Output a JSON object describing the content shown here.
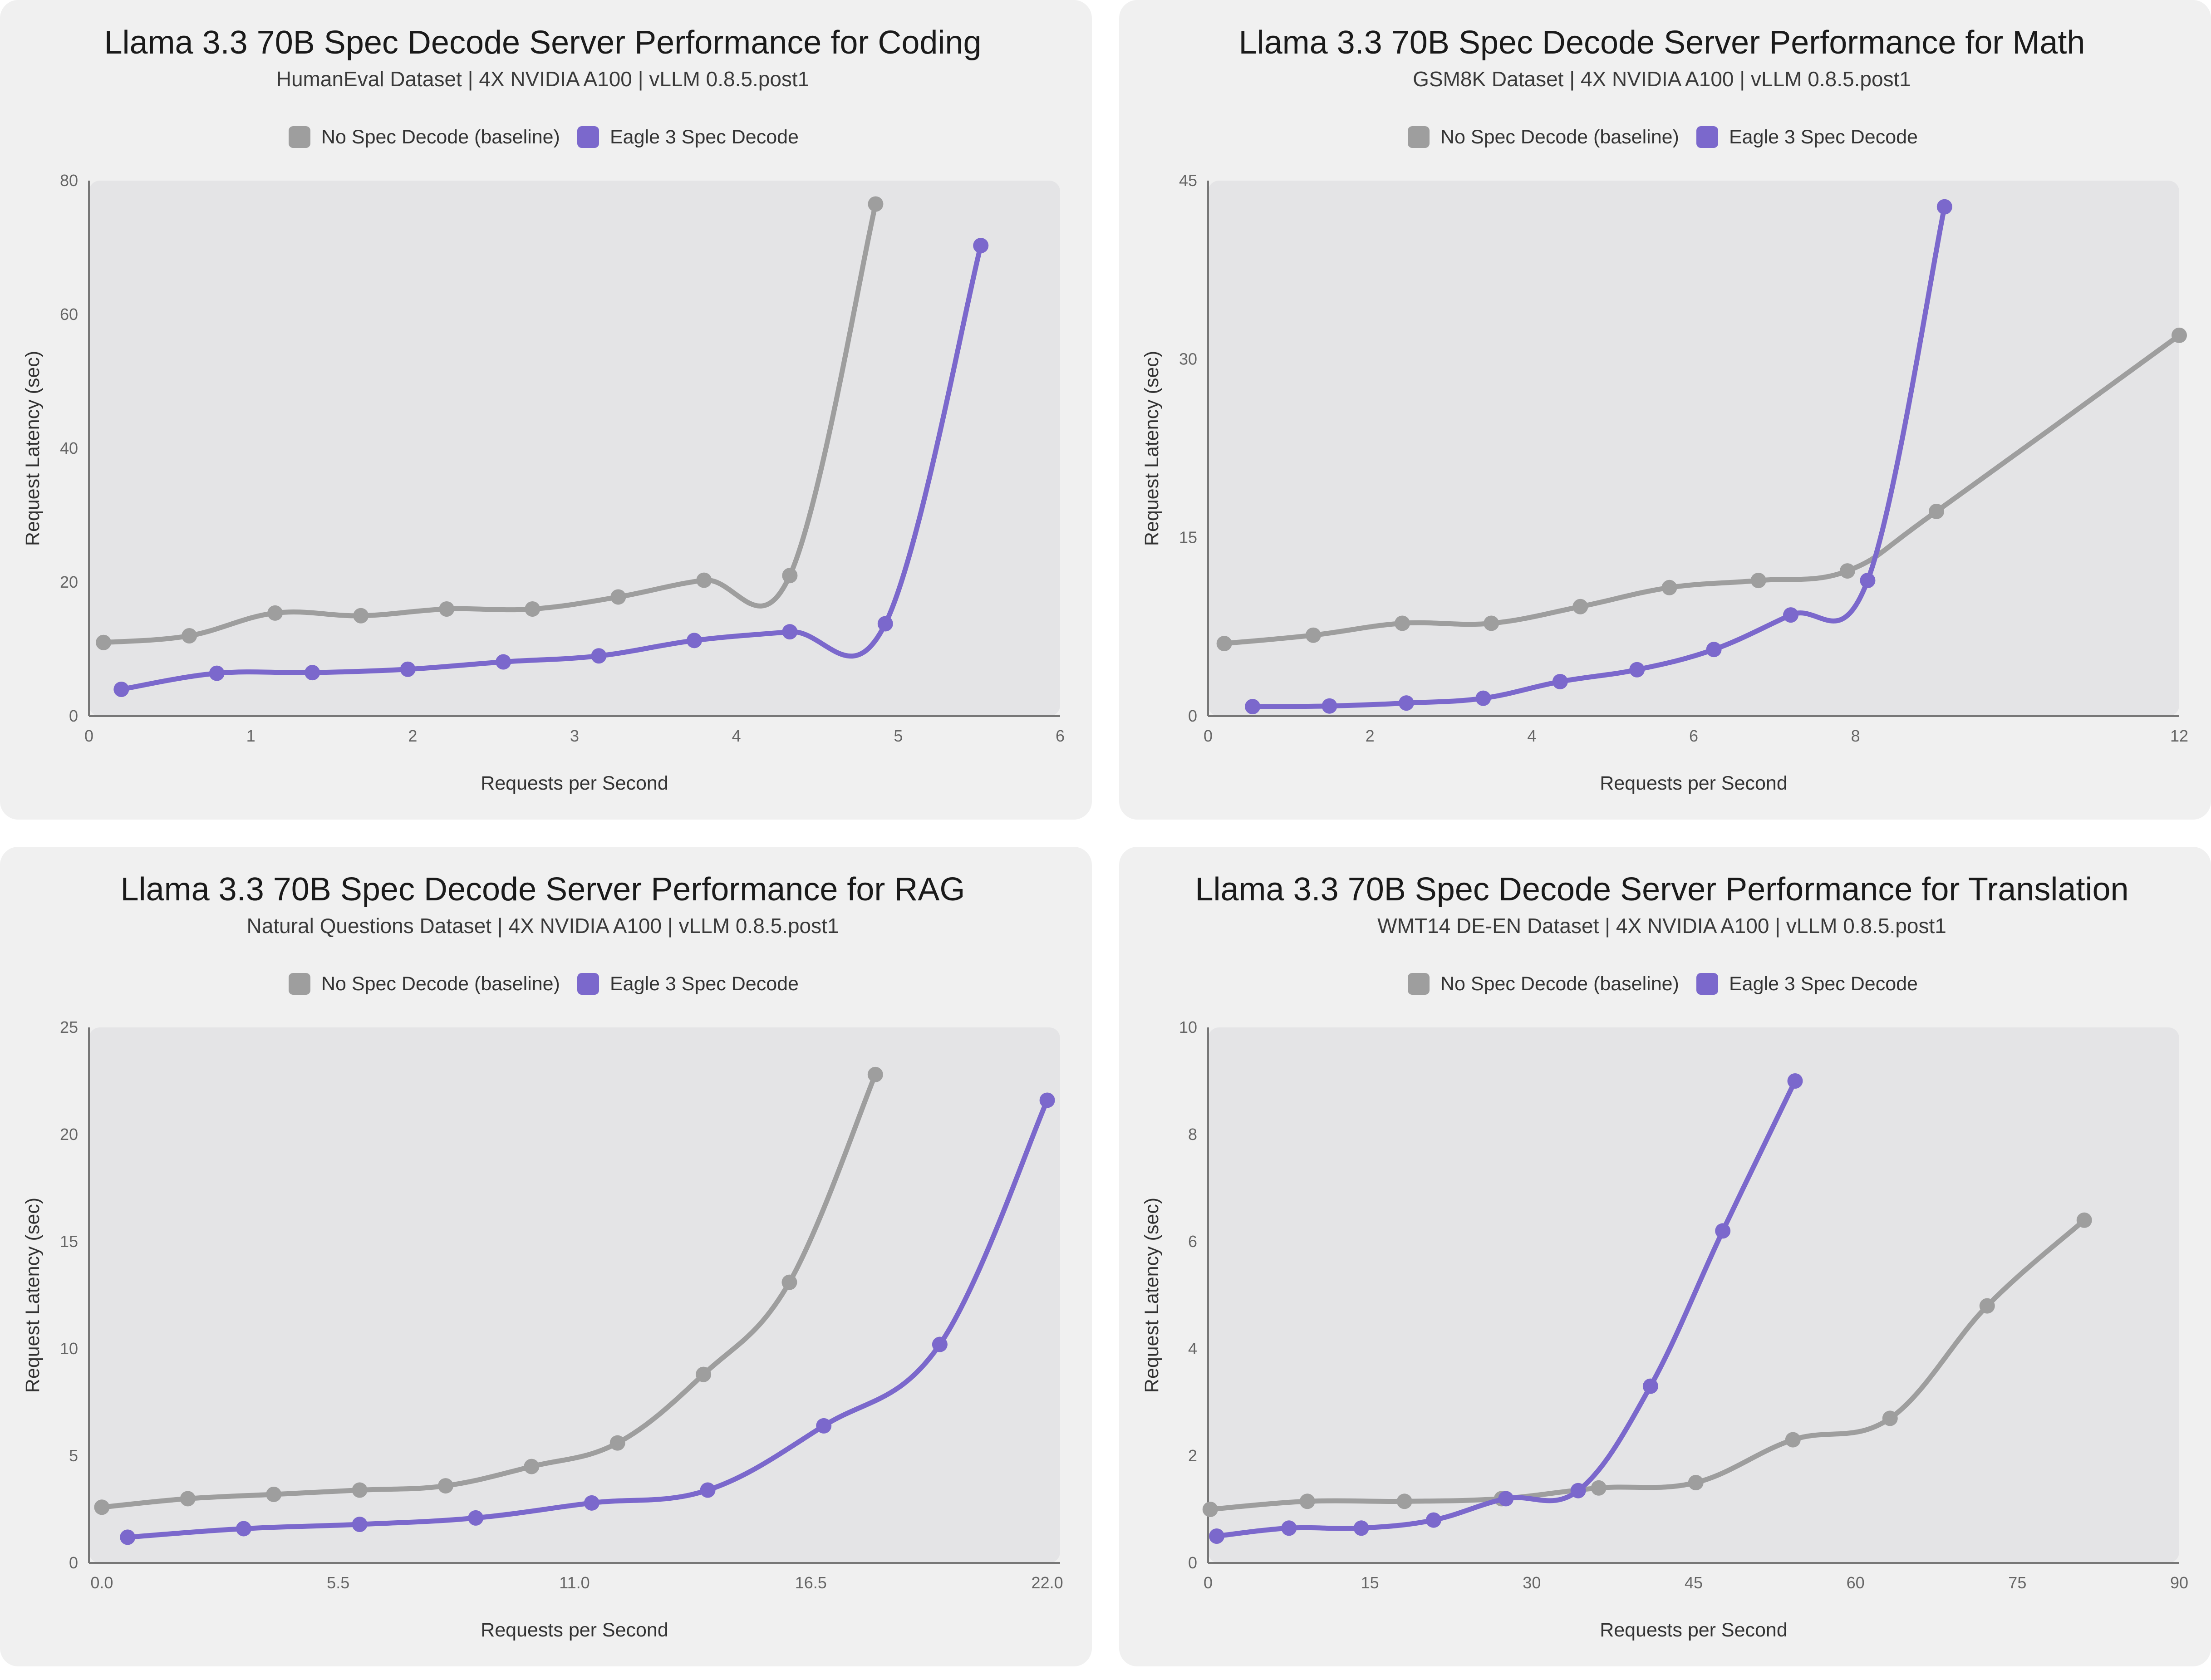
{
  "colors": {
    "baseline": "#9e9e9e",
    "eagle": "#7b68cc",
    "plot_bg": "#e4e4e6",
    "panel_bg": "#f0f0f0",
    "axis": "#777777"
  },
  "chart_data": [
    {
      "type": "line",
      "title": "Llama 3.3 70B Spec Decode Server Performance for Coding",
      "subtitle": "HumanEval Dataset | 4X NVIDIA A100 | vLLM 0.8.5.post1",
      "xlabel": "Requests per Second",
      "ylabel": "Request Latency (sec)",
      "xlim": [
        0,
        6
      ],
      "ylim": [
        0,
        80
      ],
      "xticks": [
        "0",
        "1",
        "2",
        "3",
        "4",
        "5",
        "6"
      ],
      "xtick_values": [
        0,
        1,
        2,
        3,
        4,
        5,
        6
      ],
      "yticks": [
        "0",
        "20",
        "40",
        "60",
        "80"
      ],
      "ytick_values": [
        0,
        20,
        40,
        60,
        80
      ],
      "legend_position": "top-center",
      "grid": false,
      "series": [
        {
          "name": "No Spec Decode (baseline)",
          "x": [
            0.09,
            0.62,
            1.15,
            1.68,
            2.21,
            2.74,
            3.27,
            3.8,
            4.33,
            4.86
          ],
          "y": [
            11,
            12,
            15.4,
            15,
            16,
            16,
            17.8,
            20.3,
            21,
            76.5
          ]
        },
        {
          "name": "Eagle 3 Spec Decode",
          "x": [
            0.2,
            0.79,
            1.38,
            1.97,
            2.56,
            3.15,
            3.74,
            4.33,
            4.92,
            5.51
          ],
          "y": [
            4,
            6.4,
            6.5,
            7,
            8.1,
            9,
            11.3,
            12.6,
            13.8,
            70.3
          ]
        }
      ]
    },
    {
      "type": "line",
      "title": "Llama 3.3 70B Spec Decode Server Performance for Math",
      "subtitle": "GSM8K Dataset | 4X NVIDIA A100 | vLLM 0.8.5.post1",
      "xlabel": "Requests per Second",
      "ylabel": "Request Latency (sec)",
      "xlim": [
        0,
        12
      ],
      "ylim": [
        0,
        45
      ],
      "xticks": [
        "0",
        "2",
        "4",
        "6",
        "8",
        "12"
      ],
      "xtick_values": [
        0,
        2,
        4,
        6,
        8,
        12
      ],
      "yticks": [
        "0",
        "15",
        "30",
        "45"
      ],
      "ytick_values": [
        0,
        15,
        30,
        45
      ],
      "legend_position": "top-center",
      "grid": false,
      "series": [
        {
          "name": "No Spec Decode (baseline)",
          "x": [
            0.2,
            1.3,
            2.4,
            3.5,
            4.6,
            5.7,
            6.8,
            7.9,
            9.0,
            12.0
          ],
          "y": [
            6.1,
            6.8,
            7.8,
            7.8,
            9.2,
            10.8,
            11.4,
            12.2,
            17.2,
            32
          ]
        },
        {
          "name": "Eagle 3 Spec Decode",
          "x": [
            0.55,
            1.5,
            2.45,
            3.4,
            4.35,
            5.3,
            6.25,
            7.2,
            8.15,
            9.1
          ],
          "y": [
            0.8,
            0.85,
            1.1,
            1.5,
            2.9,
            3.9,
            5.6,
            8.5,
            11.4,
            42.8
          ]
        }
      ]
    },
    {
      "type": "line",
      "title": "Llama 3.3 70B Spec Decode Server Performance for RAG",
      "subtitle": "Natural Questions Dataset | 4X NVIDIA A100 | vLLM 0.8.5.post1",
      "xlabel": "Requests per Second",
      "ylabel": "Request Latency (sec)",
      "xlim": [
        -0.3,
        22.3
      ],
      "ylim": [
        0,
        25
      ],
      "xticks": [
        "0.0",
        "5.5",
        "11.0",
        "16.5",
        "22.0"
      ],
      "xtick_values": [
        0,
        5.5,
        11,
        16.5,
        22
      ],
      "yticks": [
        "0",
        "5",
        "10",
        "15",
        "20",
        "25"
      ],
      "ytick_values": [
        0,
        5,
        10,
        15,
        20,
        25
      ],
      "legend_position": "top-center",
      "grid": false,
      "series": [
        {
          "name": "No Spec Decode (baseline)",
          "x": [
            0.0,
            2.0,
            4.0,
            6.0,
            8.0,
            10.0,
            12.0,
            14.0,
            16.0,
            18.0
          ],
          "y": [
            2.6,
            3.0,
            3.2,
            3.4,
            3.6,
            4.5,
            5.6,
            8.8,
            13.1,
            22.8
          ]
        },
        {
          "name": "Eagle 3 Spec Decode",
          "x": [
            0.6,
            3.3,
            6.0,
            8.7,
            11.4,
            14.1,
            16.8,
            19.5,
            22.0
          ],
          "y": [
            1.2,
            1.6,
            1.8,
            2.1,
            2.8,
            3.4,
            6.4,
            10.2,
            21.6
          ]
        }
      ]
    },
    {
      "type": "line",
      "title": "Llama 3.3 70B Spec Decode Server Performance for Translation",
      "subtitle": "WMT14 DE-EN Dataset | 4X NVIDIA A100 | vLLM 0.8.5.post1",
      "xlabel": "Requests per Second",
      "ylabel": "Request Latency (sec)",
      "xlim": [
        0,
        90
      ],
      "ylim": [
        0,
        10
      ],
      "xticks": [
        "0",
        "15",
        "30",
        "45",
        "60",
        "75",
        "90"
      ],
      "xtick_values": [
        0,
        15,
        30,
        45,
        60,
        75,
        90
      ],
      "yticks": [
        "0",
        "2",
        "4",
        "6",
        "8",
        "10"
      ],
      "ytick_values": [
        0,
        2,
        4,
        6,
        8,
        10
      ],
      "legend_position": "top-center",
      "grid": false,
      "series": [
        {
          "name": "No Spec Decode (baseline)",
          "x": [
            0.2,
            9.2,
            18.2,
            27.2,
            36.2,
            45.2,
            54.2,
            63.2,
            72.2,
            81.2
          ],
          "y": [
            1.0,
            1.15,
            1.15,
            1.2,
            1.4,
            1.5,
            2.3,
            2.7,
            4.8,
            6.4
          ]
        },
        {
          "name": "Eagle 3 Spec Decode",
          "x": [
            0.8,
            7.5,
            14.2,
            20.9,
            27.6,
            34.3,
            41.0,
            47.7,
            54.4
          ],
          "y": [
            0.5,
            0.65,
            0.65,
            0.8,
            1.2,
            1.35,
            3.3,
            6.2,
            9.0
          ]
        }
      ]
    }
  ]
}
